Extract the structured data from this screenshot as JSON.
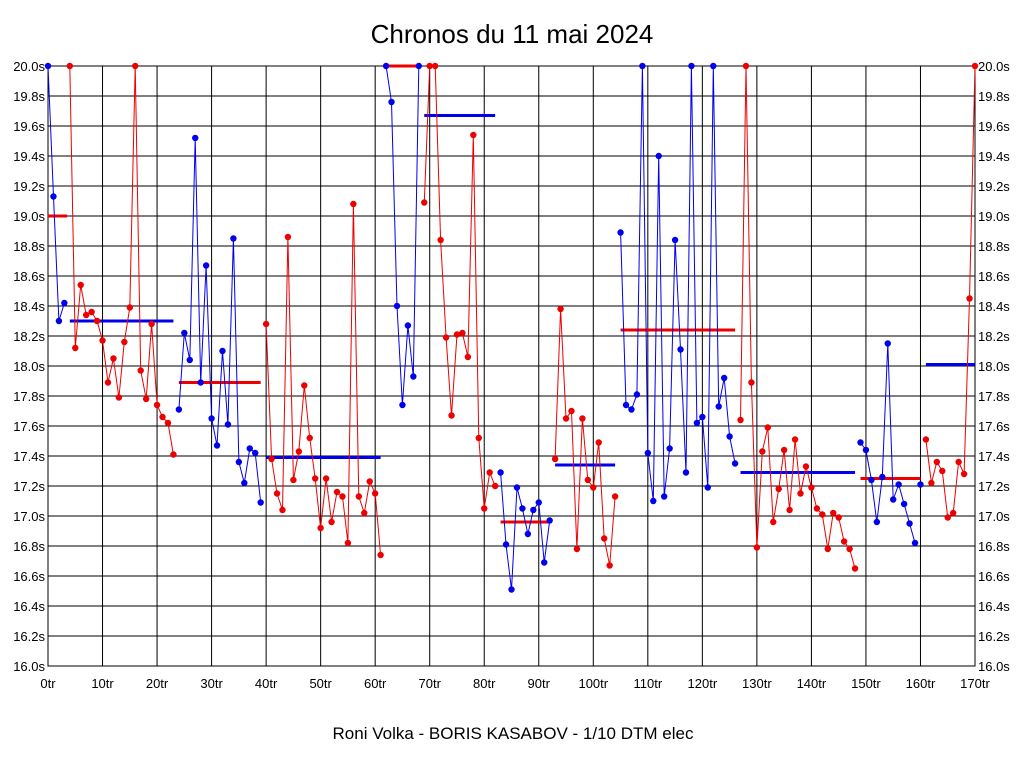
{
  "chart_data": {
    "type": "line",
    "title": "Chronos du 11 mai 2024",
    "footer": "Roni Volka - BORIS KASABOV - 1/10 DTM elec",
    "xlabel": "",
    "ylabel": "",
    "xlim": [
      0,
      170
    ],
    "ylim": [
      16.0,
      20.0
    ],
    "x_ticks": [
      "0tr",
      "10tr",
      "20tr",
      "30tr",
      "40tr",
      "50tr",
      "60tr",
      "70tr",
      "80tr",
      "90tr",
      "100tr",
      "110tr",
      "120tr",
      "130tr",
      "140tr",
      "150tr",
      "160tr",
      "170tr"
    ],
    "y_ticks_left": [
      "20.0s",
      "19.8s",
      "19.6s",
      "19.4s",
      "19.2s",
      "19.0s",
      "18.8s",
      "18.6s",
      "18.4s",
      "18.2s",
      "18.0s",
      "17.8s",
      "17.6s",
      "17.4s",
      "17.2s",
      "17.0s",
      "16.8s",
      "16.6s",
      "16.4s",
      "16.2s",
      "16.0s"
    ],
    "y_ticks_right": [
      "20.0s",
      "19.8s",
      "19.6s",
      "19.4s",
      "19.2s",
      "19.0s",
      "18.8s",
      "18.6s",
      "18.4s",
      "18.2s",
      "18.0s",
      "17.8s",
      "17.6s",
      "17.4s",
      "17.2s",
      "17.0s",
      "16.8s",
      "16.6s",
      "16.4s",
      "16.2s",
      "16.0s"
    ],
    "grid": true,
    "colors": {
      "blue": "#0000ee",
      "red": "#ee0000",
      "grid": "#000000"
    },
    "series": [
      {
        "color": "blue",
        "x": [
          0,
          1,
          2,
          3
        ],
        "y": [
          20.0,
          19.13,
          18.3,
          18.42
        ]
      },
      {
        "color": "red",
        "x": [
          4,
          5,
          6,
          7,
          8,
          9,
          10,
          11,
          12,
          13,
          14,
          15,
          16,
          17,
          18,
          19,
          20,
          21,
          22,
          23
        ],
        "y": [
          20.0,
          18.12,
          18.54,
          18.34,
          18.36,
          18.3,
          18.17,
          17.89,
          18.05,
          17.79,
          18.16,
          18.39,
          20.0,
          17.97,
          17.78,
          18.28,
          17.74,
          17.66,
          17.62,
          17.41
        ]
      },
      {
        "color": "blue",
        "x": [
          24,
          25,
          26,
          27,
          28,
          29,
          30,
          31,
          32,
          33,
          34,
          35,
          36,
          37,
          38,
          39
        ],
        "y": [
          17.71,
          18.22,
          18.04,
          19.52,
          17.89,
          18.67,
          17.65,
          17.47,
          18.1,
          17.61,
          18.85,
          17.36,
          17.22,
          17.45,
          17.42,
          17.09
        ]
      },
      {
        "color": "red",
        "x": [
          40,
          41,
          42,
          43,
          44,
          45,
          46,
          47,
          48,
          49,
          50,
          51,
          52,
          53,
          54,
          55,
          56,
          57,
          58,
          59,
          60,
          61
        ],
        "y": [
          18.28,
          17.38,
          17.15,
          17.04,
          18.86,
          17.24,
          17.43,
          17.87,
          17.52,
          17.25,
          16.92,
          17.25,
          16.96,
          17.16,
          17.13,
          16.82,
          19.08,
          17.13,
          17.02,
          17.23,
          17.15,
          16.74
        ]
      },
      {
        "color": "blue",
        "x": [
          62,
          63,
          64,
          65,
          66,
          67,
          68
        ],
        "y": [
          20.0,
          19.76,
          18.4,
          17.74,
          18.27,
          17.93,
          20.0
        ]
      },
      {
        "color": "red",
        "x": [
          69,
          70,
          71,
          72,
          73,
          74,
          75,
          76,
          77,
          78,
          79,
          80,
          81,
          82
        ],
        "y": [
          19.09,
          20.0,
          20.0,
          18.84,
          18.19,
          17.67,
          18.21,
          18.22,
          18.06,
          19.54,
          17.52,
          17.05,
          17.29,
          17.2
        ]
      },
      {
        "color": "blue",
        "x": [
          83,
          84,
          85,
          86,
          87,
          88,
          89,
          90,
          91,
          92
        ],
        "y": [
          17.29,
          16.81,
          16.51,
          17.19,
          17.05,
          16.88,
          17.04,
          17.09,
          16.69,
          16.97
        ]
      },
      {
        "color": "red",
        "x": [
          93,
          94,
          95,
          96,
          97,
          98,
          99,
          100,
          101,
          102,
          103,
          104
        ],
        "y": [
          17.38,
          18.38,
          17.65,
          17.7,
          16.78,
          17.65,
          17.24,
          17.19,
          17.49,
          16.85,
          16.67,
          17.13
        ]
      },
      {
        "color": "blue",
        "x": [
          105,
          106,
          107,
          108,
          109,
          110,
          111,
          112,
          113,
          114,
          115,
          116,
          117,
          118,
          119,
          120,
          121,
          122,
          123,
          124,
          125,
          126
        ],
        "y": [
          18.89,
          17.74,
          17.71,
          17.81,
          20.0,
          17.42,
          17.1,
          19.4,
          17.13,
          17.45,
          18.84,
          18.11,
          17.29,
          20.0,
          17.62,
          17.66,
          17.19,
          20.0,
          17.73,
          17.92,
          17.53,
          17.35
        ]
      },
      {
        "color": "red",
        "x": [
          127,
          128,
          129,
          130,
          131,
          132,
          133,
          134,
          135,
          136,
          137,
          138,
          139,
          140,
          141,
          142,
          143,
          144,
          145,
          146,
          147,
          148
        ],
        "y": [
          17.64,
          20.0,
          17.89,
          16.79,
          17.43,
          17.59,
          16.96,
          17.18,
          17.44,
          17.04,
          17.51,
          17.15,
          17.33,
          17.19,
          17.05,
          17.01,
          16.78,
          17.02,
          16.99,
          16.83,
          16.78,
          16.65
        ]
      },
      {
        "color": "blue",
        "x": [
          149,
          150,
          151,
          152,
          153,
          154,
          155,
          156,
          157,
          158,
          159
        ],
        "y": [
          17.49,
          17.44,
          17.24,
          16.96,
          17.26,
          18.15,
          17.11,
          17.21,
          17.08,
          16.95,
          16.82
        ]
      },
      {
        "color": "blue",
        "x": [
          160
        ],
        "y": [
          17.21
        ]
      },
      {
        "color": "red",
        "x": [
          161,
          162,
          163,
          164,
          165,
          166,
          167,
          168,
          169,
          170
        ],
        "y": [
          17.51,
          17.22,
          17.36,
          17.3,
          16.99,
          17.02,
          17.36,
          17.28,
          18.45,
          20.0
        ]
      }
    ],
    "averages": [
      {
        "color": "red",
        "x0": 0,
        "x1": 3.5,
        "y": 19.0
      },
      {
        "color": "blue",
        "x0": 4,
        "x1": 23,
        "y": 18.3
      },
      {
        "color": "red",
        "x0": 24,
        "x1": 39,
        "y": 17.89
      },
      {
        "color": "blue",
        "x0": 40,
        "x1": 61,
        "y": 17.39
      },
      {
        "color": "red",
        "x0": 62,
        "x1": 68,
        "y": 20.0
      },
      {
        "color": "blue",
        "x0": 69,
        "x1": 82,
        "y": 19.67
      },
      {
        "color": "red",
        "x0": 83,
        "x1": 92,
        "y": 16.96
      },
      {
        "color": "blue",
        "x0": 93,
        "x1": 104,
        "y": 17.34
      },
      {
        "color": "red",
        "x0": 105,
        "x1": 126,
        "y": 18.24
      },
      {
        "color": "blue",
        "x0": 127,
        "x1": 148,
        "y": 17.29
      },
      {
        "color": "red",
        "x0": 149,
        "x1": 160,
        "y": 17.25
      },
      {
        "color": "blue",
        "x0": 161,
        "x1": 170,
        "y": 18.01
      }
    ]
  }
}
